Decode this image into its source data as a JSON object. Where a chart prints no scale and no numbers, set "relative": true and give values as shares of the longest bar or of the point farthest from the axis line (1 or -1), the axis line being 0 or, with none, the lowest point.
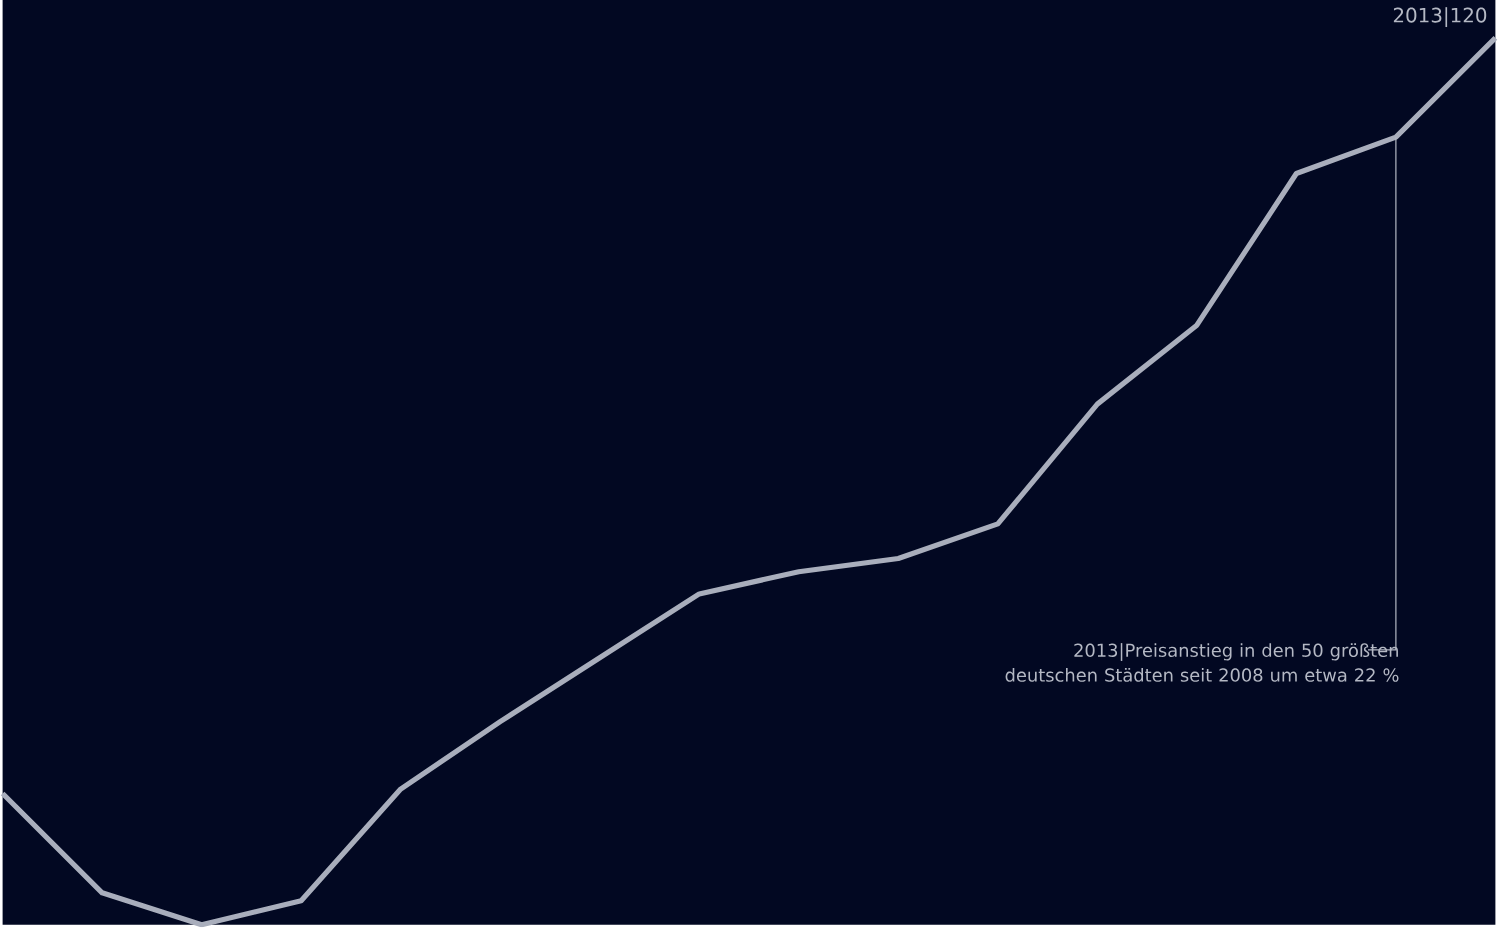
{
  "chart_data": {
    "type": "line",
    "relative": true,
    "categories": [
      null,
      null,
      null,
      null,
      null,
      null,
      null,
      null,
      null,
      null,
      null,
      null,
      null,
      null,
      null,
      null
    ],
    "series": [
      {
        "color": "#a9aebc",
        "values": [
          0.148,
          0.036,
          0,
          0.027,
          0.153,
          0.229,
          0.301,
          0.373,
          0.398,
          0.413,
          0.452,
          0.587,
          0.676,
          0.847,
          0.888,
          1
        ]
      }
    ],
    "annotations": [
      "2013|120",
      "2013|Preisanstieg in den 50 größten deutschen Städten seit 2008 um etwa 22 %"
    ],
    "marker": "none",
    "line_style": "solid"
  }
}
